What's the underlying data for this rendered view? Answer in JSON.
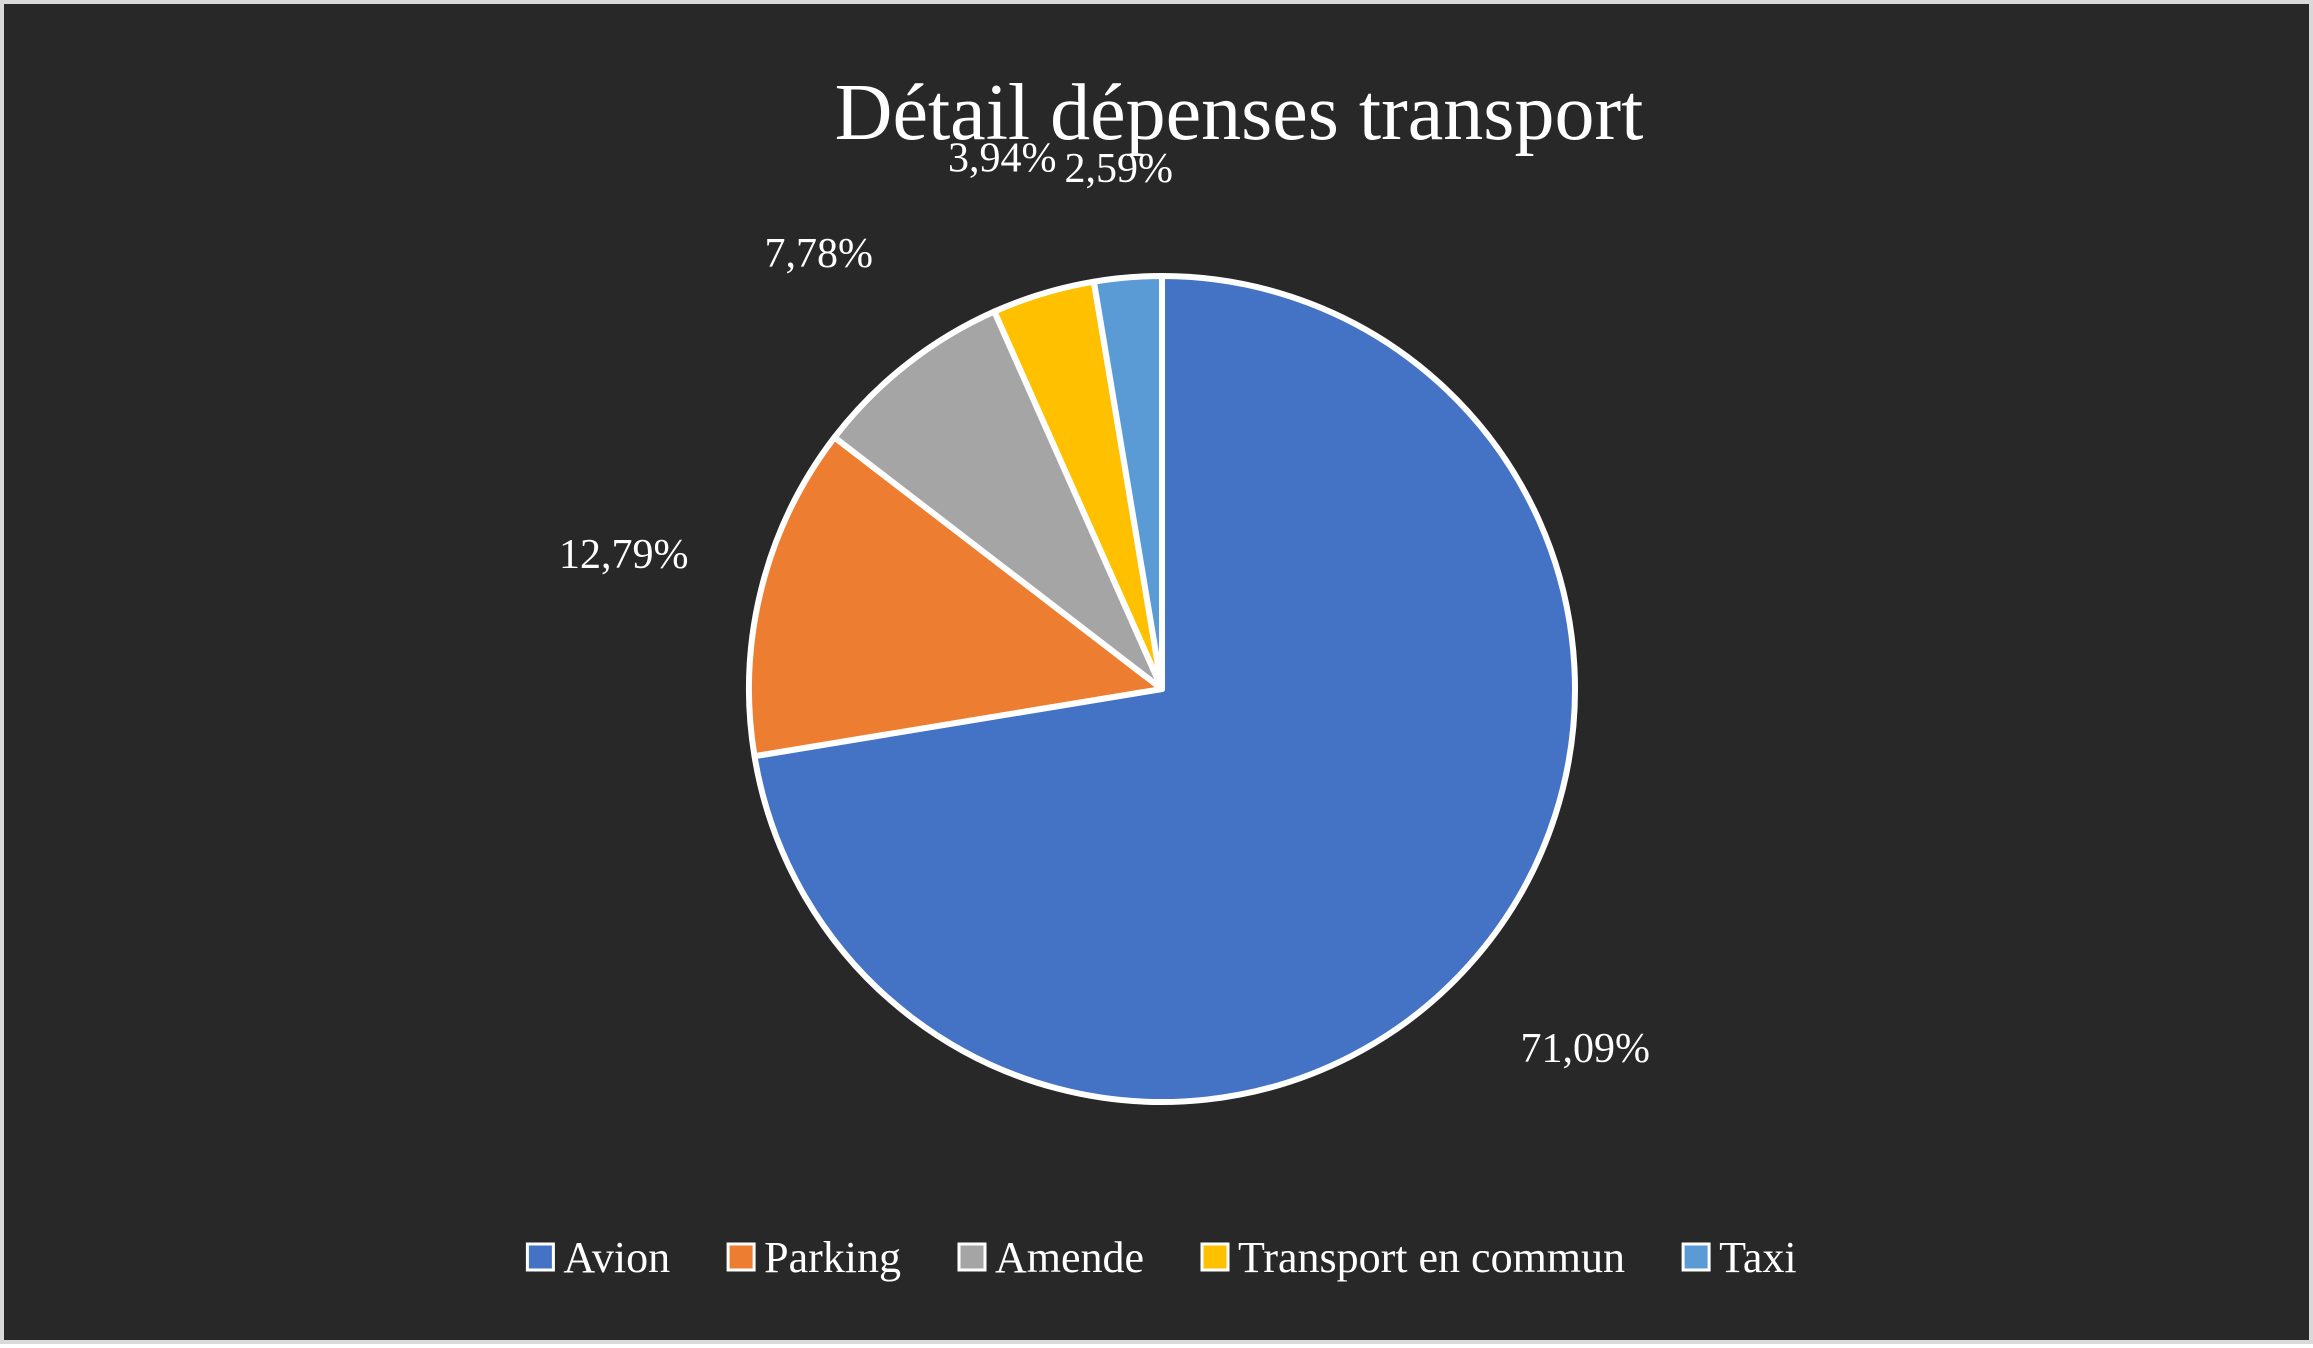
{
  "chart_data": {
    "type": "pie",
    "title": "Détail dépenses transport",
    "categories": [
      "Avion",
      "Parking",
      "Amende",
      "Transport en commun",
      "Taxi"
    ],
    "values": [
      71.09,
      12.79,
      7.78,
      3.94,
      2.59
    ],
    "labels": [
      "71,09%",
      "12,79%",
      "7,78%",
      "3,94%",
      "2,59%"
    ],
    "colors": [
      "#4472c4",
      "#ed7d31",
      "#a5a5a5",
      "#ffc000",
      "#5b9bd5"
    ],
    "start_angle": "12 o'clock",
    "direction": "clockwise",
    "legend_position": "bottom",
    "background": "#282828",
    "slice_border": "#ffffff"
  }
}
